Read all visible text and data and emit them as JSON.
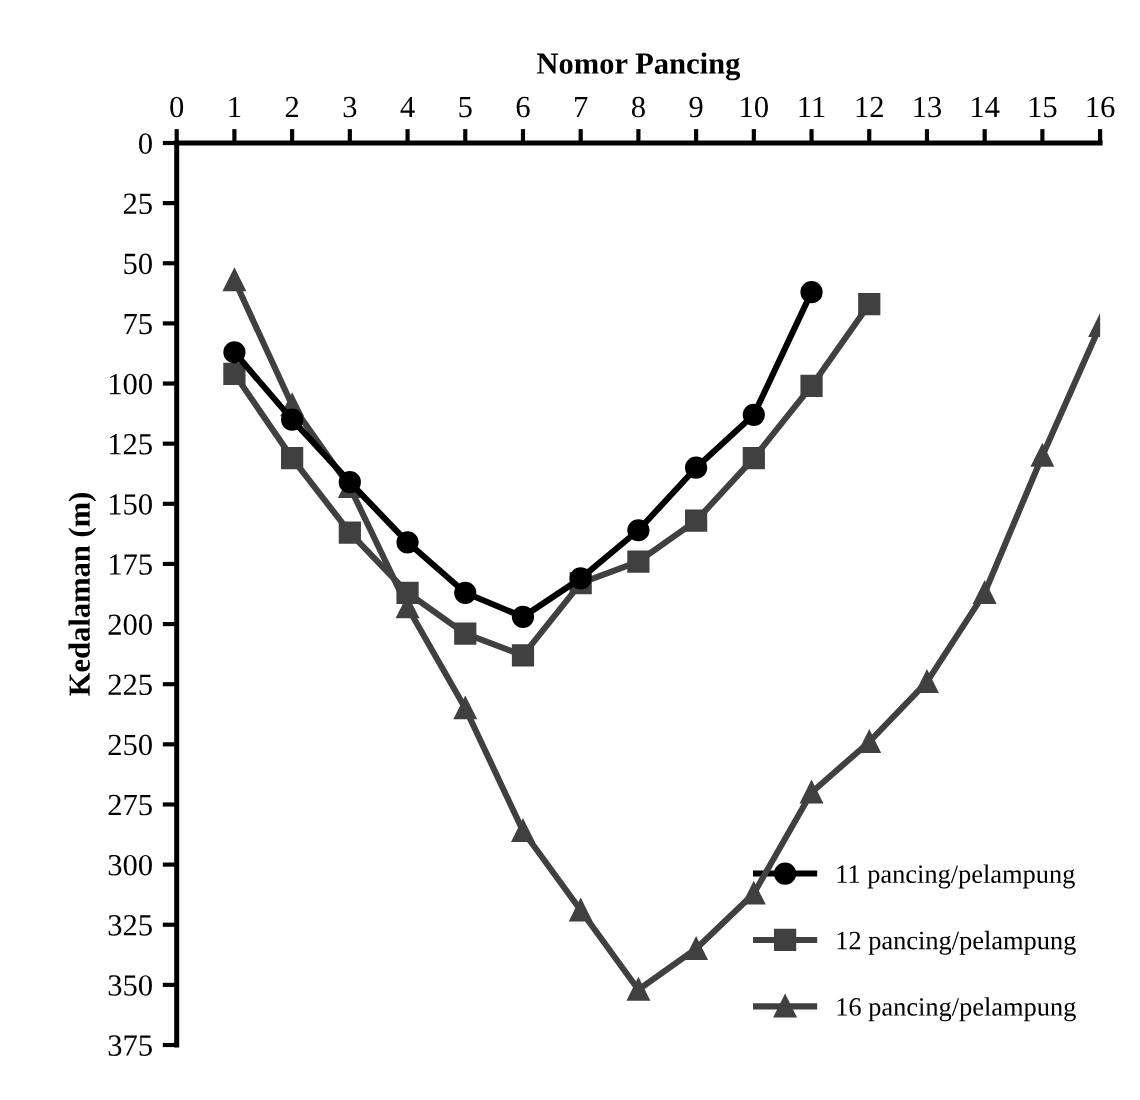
{
  "chart_data": {
    "type": "line",
    "xlabel": "Nomor Pancing",
    "ylabel": "Kedalaman (m)",
    "xlim": [
      0,
      16
    ],
    "xticks": [
      0,
      1,
      2,
      3,
      4,
      5,
      6,
      7,
      8,
      9,
      10,
      11,
      12,
      13,
      14,
      15,
      16
    ],
    "ylim": [
      375,
      0
    ],
    "yticks": [
      0,
      25,
      50,
      75,
      100,
      125,
      150,
      175,
      200,
      225,
      250,
      275,
      300,
      325,
      350,
      375
    ],
    "legend": "bottom right",
    "grid": false,
    "line_style": "solid",
    "series": [
      {
        "name": "11 pancing/pelampung",
        "color": "#000000",
        "marker": "circle",
        "x": [
          1,
          2,
          3,
          4,
          5,
          6,
          7,
          8,
          9,
          10,
          11
        ],
        "values": [
          87,
          115,
          141,
          166,
          187,
          197,
          181,
          161,
          135,
          113,
          62
        ]
      },
      {
        "name": "12 pancing/pelampung",
        "color": "#404040",
        "marker": "square",
        "x": [
          1,
          2,
          3,
          4,
          5,
          6,
          7,
          8,
          9,
          10,
          11,
          12
        ],
        "values": [
          96,
          131,
          162,
          187,
          204,
          213,
          183,
          174,
          157,
          131,
          101,
          67
        ]
      },
      {
        "name": "16 pancing/pelampung",
        "color": "#404040",
        "marker": "triangle",
        "x": [
          1,
          2,
          3,
          4,
          5,
          6,
          7,
          8,
          9,
          10,
          11,
          12,
          13,
          14,
          15,
          16
        ],
        "values": [
          57,
          109,
          143,
          193,
          235,
          286,
          319,
          352,
          335,
          312,
          270,
          249,
          224,
          187,
          130,
          76
        ]
      }
    ]
  }
}
